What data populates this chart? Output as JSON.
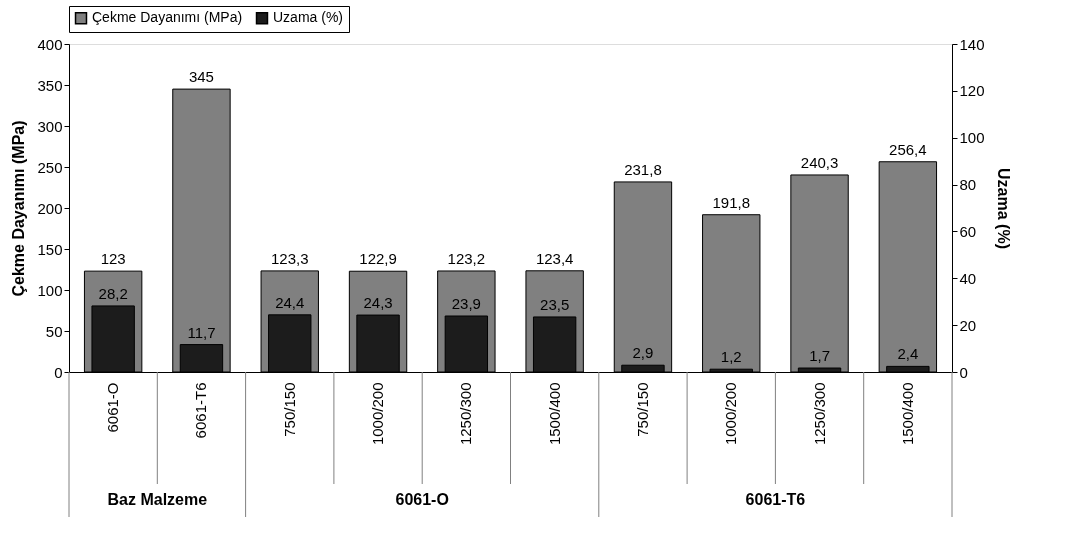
{
  "chart_data": {
    "type": "bar",
    "categories": [
      "6061-O",
      "6061-T6",
      "750/150",
      "1000/200",
      "1250/300",
      "1500/400",
      "750/150",
      "1000/200",
      "1250/300",
      "1500/400"
    ],
    "series": [
      {
        "name": "Çekme Dayanımı (MPa)",
        "color": "#808080",
        "values": [
          123,
          345,
          123.3,
          122.9,
          123.2,
          123.4,
          231.8,
          191.8,
          240.3,
          256.4
        ],
        "value_labels": [
          "123",
          "345",
          "123,3",
          "122,9",
          "123,2",
          "123,4",
          "231,8",
          "191,8",
          "240,3",
          "256,4"
        ]
      },
      {
        "name": "Uzama (%)",
        "color": "#1c1c1c",
        "axis": "y2",
        "values": [
          28.2,
          11.7,
          24.4,
          24.3,
          23.9,
          23.5,
          2.9,
          1.2,
          1.7,
          2.4
        ],
        "value_labels": [
          "28,2",
          "11,7",
          "24,4",
          "24,3",
          "23,9",
          "23,5",
          "2,9",
          "1,2",
          "1,7",
          "2,4"
        ]
      }
    ],
    "ylabel": "Çekme Dayanımı (MPa)",
    "y2label": "Uzama (%)",
    "ylim": [
      0,
      400
    ],
    "yticks": [
      0,
      50,
      100,
      150,
      200,
      250,
      300,
      350,
      400
    ],
    "y2lim": [
      0,
      140
    ],
    "y2ticks": [
      0,
      20,
      40,
      60,
      80,
      100,
      120,
      140
    ],
    "annotations": [
      "Baz Malzeme",
      "6061-O",
      "6061-T6"
    ],
    "legend": "top",
    "grid": false
  }
}
